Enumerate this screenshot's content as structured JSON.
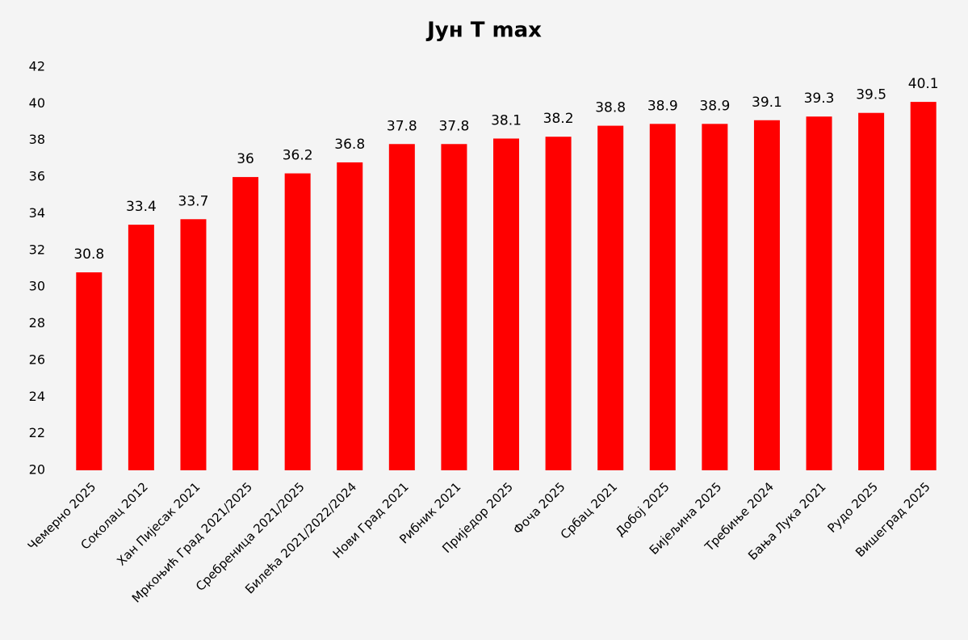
{
  "chart_data": {
    "type": "bar",
    "title": "Јун Т max",
    "categories": [
      "Чемерно 2025",
      "Соколац 2012",
      "Хан Пијесак 2021",
      "Мркоњић Град 2021/2025",
      "Сребреница 2021/2025",
      "Билећа 2021/2022/2024",
      "Нови Град 2021",
      "Рибник 2021",
      "Приједор 2025",
      "Фоча 2025",
      "Србац 2021",
      "Добој 2025",
      "Бијељина 2025",
      "Требиње 2024",
      "Бања Лука 2021",
      "Рудо 2025",
      "Вишеград 2025"
    ],
    "values": [
      30.8,
      33.4,
      33.7,
      36,
      36.2,
      36.8,
      37.8,
      37.8,
      38.1,
      38.2,
      38.8,
      38.9,
      38.9,
      39.1,
      39.3,
      39.5,
      40.1
    ],
    "color": "#ff0000",
    "ylim": [
      20,
      42
    ],
    "yticks": [
      20,
      22,
      24,
      26,
      28,
      30,
      32,
      34,
      36,
      38,
      40,
      42
    ],
    "grid": false
  }
}
